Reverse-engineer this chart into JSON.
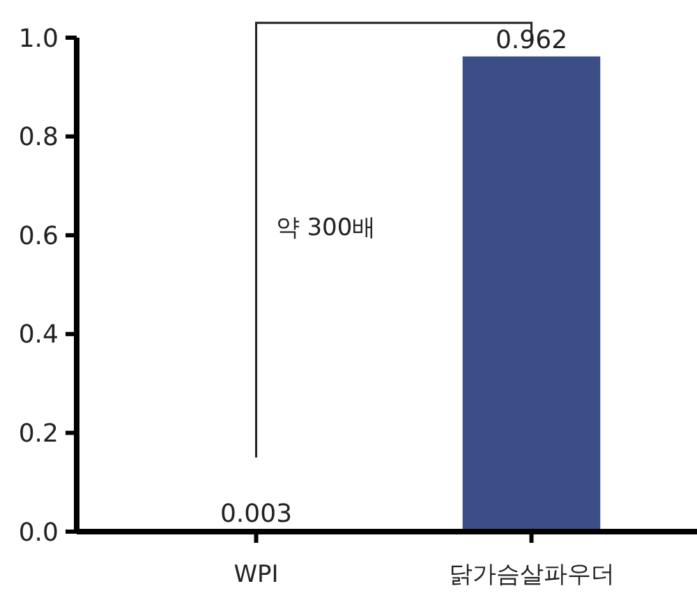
{
  "chart_data": {
    "type": "bar",
    "categories": [
      "WPI",
      "닭가슴살파우더"
    ],
    "values": [
      0.003,
      0.962
    ],
    "colors": [
      "#5aa2e8",
      "#3b4f86"
    ],
    "ylim": [
      0,
      1.0
    ],
    "yticks": [
      {
        "value": 0,
        "label": "0.0"
      },
      {
        "value": 0.2,
        "label": "0.2"
      },
      {
        "value": 0.4,
        "label": "0.4"
      },
      {
        "value": 0.6,
        "label": "0.6"
      },
      {
        "value": 0.8,
        "label": "0.8"
      },
      {
        "value": 1.0,
        "label": "1.0"
      }
    ],
    "data_labels": true,
    "grid": false,
    "annotations": [
      "약 300배"
    ]
  }
}
